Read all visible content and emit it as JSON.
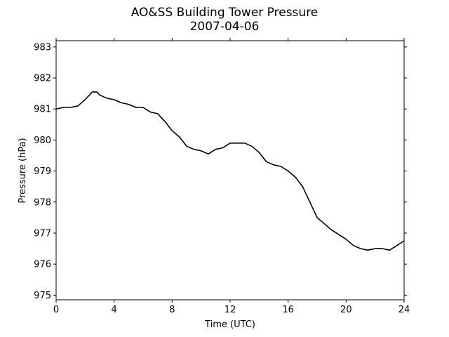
{
  "chart_data": {
    "type": "line",
    "title": "AO&SS Building Tower Pressure",
    "subtitle": "2007-04-06",
    "xlabel": "Time (UTC)",
    "ylabel": "Pressure (hPa)",
    "xlim": [
      0,
      24
    ],
    "ylim": [
      974.85,
      983.2
    ],
    "xticks": [
      0,
      4,
      8,
      12,
      16,
      20,
      24
    ],
    "yticks": [
      975,
      976,
      977,
      978,
      979,
      980,
      981,
      982,
      983
    ],
    "grid": false,
    "line_color": "#000000",
    "series": [
      {
        "x": [
          0,
          0.5,
          1,
          1.5,
          2,
          2.5,
          2.8,
          3,
          3.5,
          4,
          4.5,
          5,
          5.5,
          6,
          6.5,
          7,
          7.5,
          8,
          8.5,
          9,
          9.5,
          10,
          10.5,
          11,
          11.5,
          12,
          12.5,
          13,
          13.5,
          14,
          14.5,
          15,
          15.5,
          16,
          16.5,
          17,
          17.5,
          18,
          18.5,
          19,
          19.5,
          20,
          20.5,
          21,
          21.5,
          22,
          22.5,
          23,
          23.5,
          24
        ],
        "y": [
          981.0,
          981.05,
          981.05,
          981.1,
          981.3,
          981.55,
          981.55,
          981.45,
          981.35,
          981.3,
          981.2,
          981.15,
          981.05,
          981.05,
          980.9,
          980.85,
          980.6,
          980.3,
          980.1,
          979.8,
          979.7,
          979.65,
          979.55,
          979.7,
          979.75,
          979.9,
          979.9,
          979.9,
          979.8,
          979.6,
          979.3,
          979.2,
          979.15,
          979.0,
          978.8,
          978.5,
          978.0,
          977.5,
          977.3,
          977.1,
          976.95,
          976.8,
          976.6,
          976.5,
          976.45,
          976.5,
          976.5,
          976.45,
          976.6,
          976.75
        ]
      }
    ]
  }
}
